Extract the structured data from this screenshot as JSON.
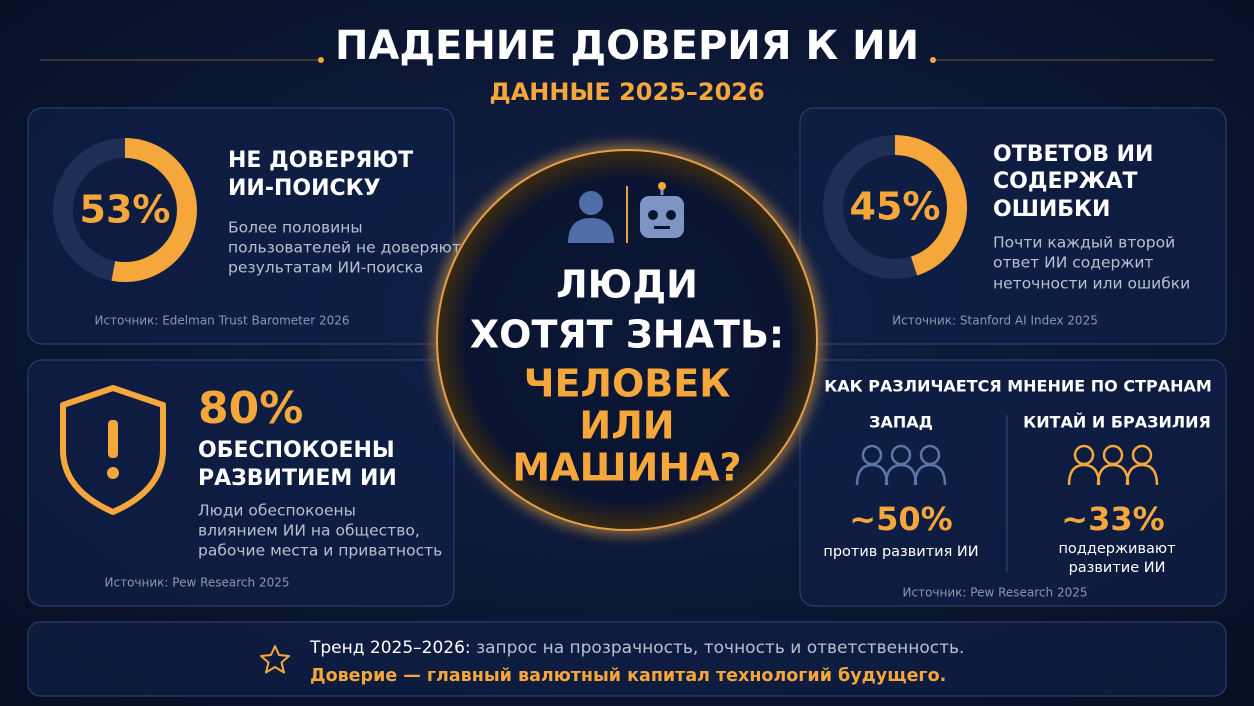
{
  "header": {
    "title": "ПАДЕНИЕ ДОВЕРИЯ К ИИ",
    "subtitle": "ДАННЫЕ 2025–2026"
  },
  "cards": [
    {
      "stat": {
        "value": 53,
        "label": "53%"
      },
      "heading": [
        "НЕ ДОВЕРЯЮТ",
        "ИИ-ПОИСКУ"
      ],
      "description": [
        "Более половины",
        "пользователей не доверяют",
        "результатам ИИ-поиска"
      ],
      "source": "Источник: Edelman Trust Barometer 2026"
    },
    {
      "stat": {
        "value": 45,
        "label": "45%"
      },
      "heading": [
        "ОТВЕТОВ ИИ",
        "СОДЕРЖАТ",
        "ОШИБКИ"
      ],
      "description": [
        "Почти каждый второй",
        "ответ ИИ содержит",
        "неточности или ошибки"
      ],
      "source": "Источник: Stanford AI Index 2025"
    },
    {
      "stat": "80%",
      "heading": [
        "ОБЕСПОКОЕНЫ",
        "РАЗВИТИЕМ ИИ"
      ],
      "description": [
        "Люди обеспокоены",
        "влиянием ИИ на общество,",
        "рабочие места и приватность"
      ],
      "source": "Источник: Pew Research 2025"
    }
  ],
  "countries": {
    "heading": "КАК РАЗЛИЧАЕТСЯ МНЕНИЕ ПО СТРАНАМ",
    "columns": [
      {
        "name": "ЗАПАД",
        "stat": "~50%",
        "caption": [
          "против развития ИИ"
        ]
      },
      {
        "name": "КИТАЙ И БРАЗИЛИЯ",
        "stat": "~33%",
        "caption": [
          "поддерживают",
          "развитие ИИ"
        ]
      }
    ],
    "source": "Источник: Pew Research 2025"
  },
  "center": {
    "lines_white": [
      "ЛЮДИ",
      "ХОТЯТ ЗНАТЬ:"
    ],
    "lines_orange": [
      "ЧЕЛОВЕК",
      "ИЛИ",
      "МАШИНА?"
    ]
  },
  "footer": {
    "trend_label": "Тренд 2025–2026:",
    "trend_text": "запрос на прозрачность, точность и ответственность.",
    "conclusion": "Доверие — главный валютный капитал технологий будущего."
  }
}
